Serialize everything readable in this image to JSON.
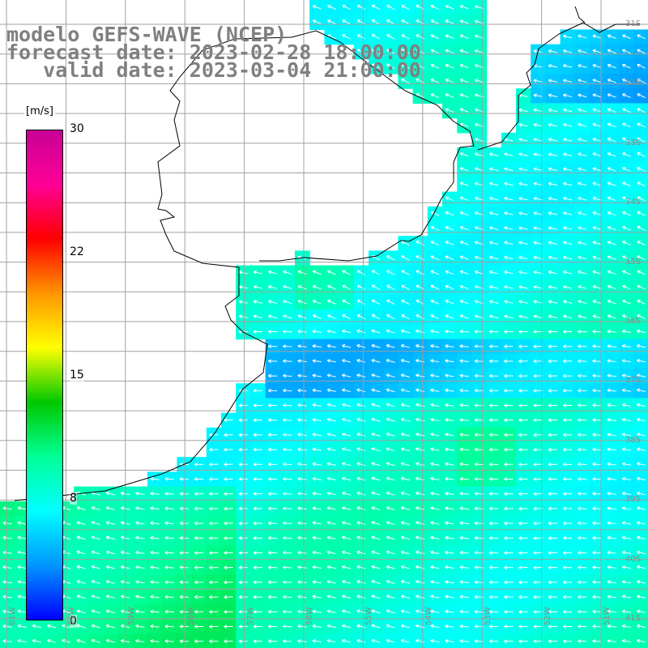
{
  "title": {
    "line1": "modelo GEFS-WAVE (NCEP)",
    "line2": "forecast date: 2023-02-28 18:00:00",
    "line3": "   valid date: 2023-03-04 21:00:00"
  },
  "colorbar": {
    "unit": "[m/s]",
    "ticks": [
      "30",
      "22",
      "15",
      "8",
      "0"
    ],
    "tick_values": [
      30,
      22,
      15,
      8,
      0
    ],
    "range": [
      0,
      30
    ],
    "colors": [
      "#0000ff",
      "#0096ff",
      "#00ffff",
      "#00ff96",
      "#00c800",
      "#ffff00",
      "#ff9600",
      "#ff0000",
      "#ff0096",
      "#c80096"
    ]
  },
  "map": {
    "field": "wind speed with direction arrows",
    "land_color": "#ffffff",
    "coastline_color": "#000000",
    "grid_color": "#a0a0a0",
    "arrow_color": "#ffffff",
    "lat_labels": [
      "31S",
      "32S",
      "33S",
      "34S",
      "35S",
      "36S",
      "37S",
      "38S",
      "39S",
      "40S",
      "41S"
    ],
    "lon_labels": [
      "61W",
      "60W",
      "59W",
      "58W",
      "57W",
      "56W",
      "55W",
      "54W",
      "53W",
      "52W",
      "51W"
    ]
  }
}
